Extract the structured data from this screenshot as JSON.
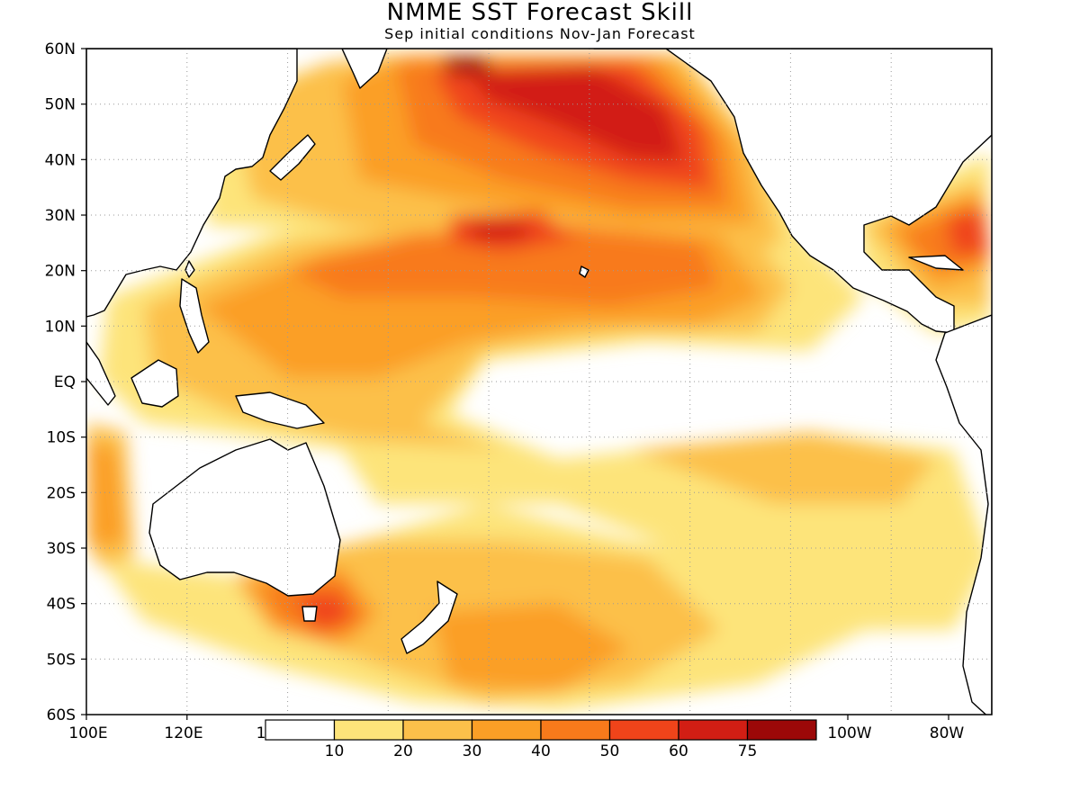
{
  "title": "NMME SST Forecast Skill",
  "subtitle": "Sep initial conditions   Nov-Jan Forecast",
  "lat_labels": [
    "60N",
    "50N",
    "40N",
    "30N",
    "20N",
    "10N",
    "EQ",
    "10S",
    "20S",
    "30S",
    "40S",
    "50S",
    "60S"
  ],
  "lon_labels": [
    "100E",
    "120E",
    "100W",
    "80W"
  ],
  "colorbar": {
    "colors": [
      "#ffffff",
      "#fde47a",
      "#fcc04a",
      "#fb9f26",
      "#f87a1b",
      "#f0441a",
      "#d21e14",
      "#9c0808"
    ],
    "labels": [
      "10",
      "20",
      "30",
      "40",
      "50",
      "60",
      "75"
    ],
    "left_edge_label": "1"
  },
  "map": {
    "projection": "cylindrical",
    "lon_range": [
      "100E",
      "80W"
    ],
    "lat_range": [
      "60S",
      "60N"
    ],
    "grid": "dotted",
    "coastlines": "black"
  }
}
